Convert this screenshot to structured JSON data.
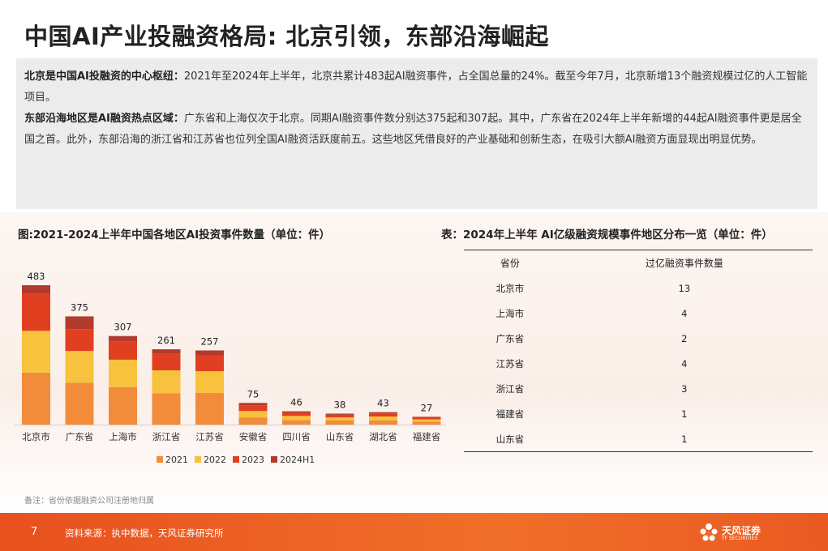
{
  "title": "中国AI产业投融资格局: 北京引领，东部沿海崛起",
  "summary": {
    "p1_bold": "北京是中国AI投融资的中心枢纽：",
    "p1_text": "2021年至2024年上半年，北京共累计483起AI融资事件，占全国总量的24%。截至今年7月，北京新增13个融资规模过亿的人工智能项目。",
    "p2_bold": "东部沿海地区是AI融资热点区域：",
    "p2_text": "广东省和上海仅次于北京。同期AI融资事件数分别达375起和307起。其中，广东省在2024年上半年新增的44起AI融资事件更是居全国之首。此外，东部沿海的浙江省和江苏省也位列全国AI融资活跃度前五。这些地区凭借良好的产业基础和创新生态，在吸引大额AI融资方面显现出明显优势。"
  },
  "chart_title": "图:2021-2024上半年中国各地区AI投资事件数量（单位：件）",
  "chart_data": {
    "type": "bar",
    "stacked": true,
    "categories": [
      "北京市",
      "广东省",
      "上海市",
      "浙江省",
      "江苏省",
      "安徽省",
      "四川省",
      "山东省",
      "湖北省",
      "福建省"
    ],
    "totals": [
      483,
      375,
      307,
      261,
      257,
      75,
      46,
      38,
      43,
      27
    ],
    "series": [
      {
        "name": "2021",
        "color": "#f28c3a",
        "values": [
          180,
          145,
          130,
          108,
          110,
          25,
          16,
          14,
          15,
          10
        ]
      },
      {
        "name": "2022",
        "color": "#f8c13e",
        "values": [
          145,
          110,
          95,
          80,
          75,
          22,
          14,
          11,
          13,
          8
        ]
      },
      {
        "name": "2023",
        "color": "#e0401f",
        "values": [
          128,
          76,
          64,
          57,
          54,
          20,
          12,
          9,
          11,
          6
        ]
      },
      {
        "name": "2024H1",
        "color": "#b23a2e",
        "values": [
          30,
          44,
          18,
          16,
          18,
          8,
          4,
          4,
          4,
          3
        ]
      }
    ],
    "ylim": [
      0,
      483
    ],
    "legend": "bottom"
  },
  "table_title": "表：2024年上半年 AI亿级融资规模事件地区分布一览（单位：件）",
  "table": {
    "headers": [
      "省份",
      "过亿融资事件数量"
    ],
    "rows": [
      [
        "北京市",
        "13"
      ],
      [
        "上海市",
        "4"
      ],
      [
        "广东省",
        "2"
      ],
      [
        "江苏省",
        "4"
      ],
      [
        "浙江省",
        "3"
      ],
      [
        "福建省",
        "1"
      ],
      [
        "山东省",
        "1"
      ]
    ]
  },
  "note": "备注：省份依据融资公司注册地归属",
  "footer": {
    "page": "7",
    "source": "资料来源：执中数据，天风证券研究所",
    "logo_name": "天风证券",
    "logo_en": "TF SECURITIES"
  }
}
